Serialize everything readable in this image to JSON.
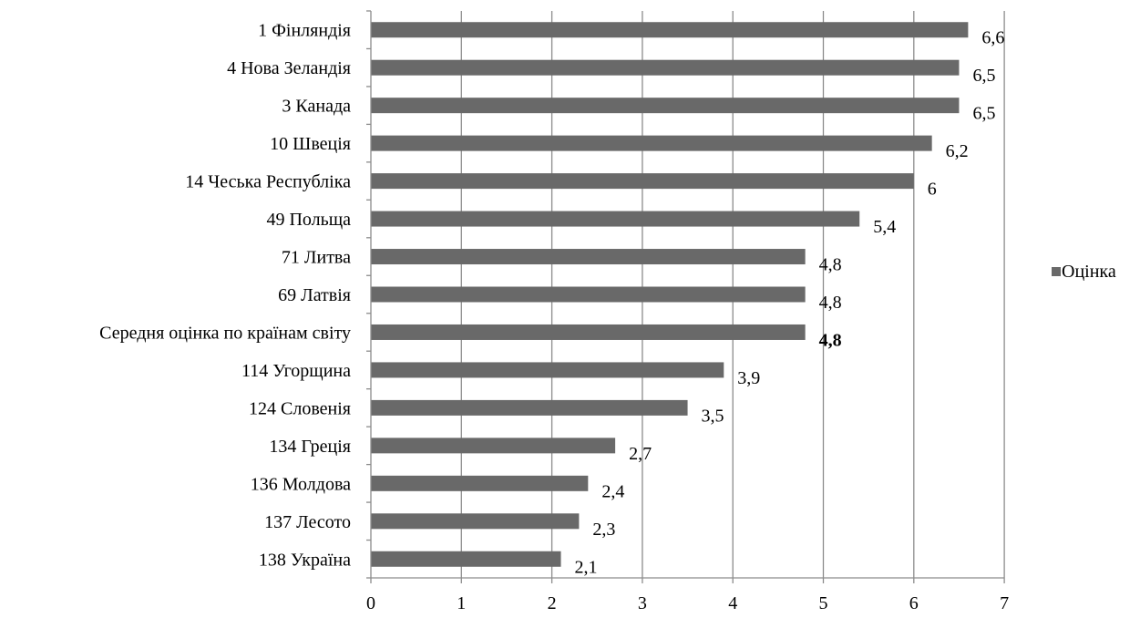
{
  "chart_data": {
    "type": "bar",
    "orientation": "horizontal",
    "categories": [
      "1 Фінляндія",
      "4 Нова Зеландія",
      "3 Канада",
      "10 Швеція",
      "14 Чеська Республіка",
      "49 Польща",
      "71 Литва",
      "69 Латвія",
      "Середня оцінка по країнам світу",
      "114 Угорщина",
      "124 Словенія",
      "134 Греція",
      "136 Молдова",
      "137 Лесото",
      "138 Україна"
    ],
    "series": [
      {
        "name": "Оцінка",
        "color": "#696969",
        "values": [
          6.6,
          6.5,
          6.5,
          6.2,
          6,
          5.4,
          4.8,
          4.8,
          4.8,
          3.9,
          3.5,
          2.7,
          2.4,
          2.3,
          2.1
        ],
        "labels": [
          "6,6",
          "6,5",
          "6,5",
          "6,2",
          "6",
          "5,4",
          "4,8",
          "4,8",
          "4,8",
          "3,9",
          "3,5",
          "2,7",
          "2,4",
          "2,3",
          "2,1"
        ]
      }
    ],
    "bold_label_category": "Середня оцінка по країнам світу",
    "xlim": [
      0,
      7
    ],
    "xticks": [
      "0",
      "1",
      "2",
      "3",
      "4",
      "5",
      "6",
      "7"
    ],
    "grid": true,
    "legend": {
      "position": "right",
      "entries": [
        "Оцінка"
      ]
    },
    "title": "",
    "xlabel": "",
    "ylabel": ""
  }
}
